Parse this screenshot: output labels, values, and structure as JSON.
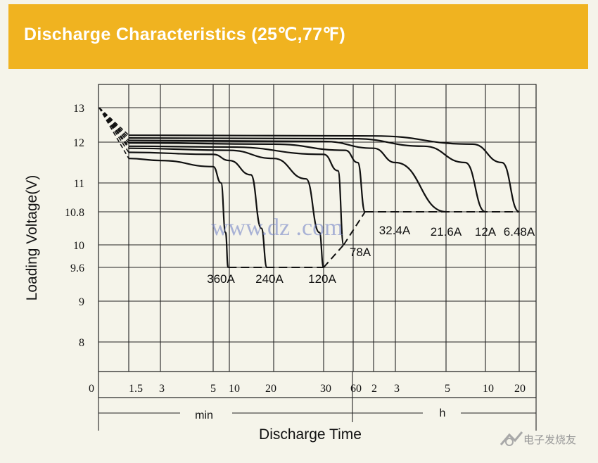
{
  "header": {
    "title": "Discharge Characteristics (25℃,77℉)"
  },
  "chart_data": {
    "type": "line",
    "title": "Discharge Characteristics (25℃,77℉)",
    "xlabel": "Discharge Time",
    "ylabel": "Loading  Voltage(V)",
    "x_units": [
      "min",
      "h"
    ],
    "x_ticks": [
      "0",
      "1.5",
      "3",
      "5",
      "10",
      "20",
      "30",
      "60",
      "2",
      "3",
      "5",
      "10",
      "20"
    ],
    "y_ticks": [
      "13",
      "12",
      "11",
      "10.8",
      "10",
      "9.6",
      "9",
      "8"
    ],
    "ylim": [
      7.5,
      13.2
    ],
    "grid": true,
    "series": [
      {
        "name": "360A",
        "cutoff_v": 9.6,
        "end_time": "9.5 min",
        "points": [
          [
            0,
            13.0
          ],
          [
            1.5,
            11.6
          ],
          [
            3,
            11.55
          ],
          [
            5,
            11.4
          ],
          [
            7,
            11.0
          ],
          [
            8.5,
            10.3
          ],
          [
            9.5,
            9.6
          ]
        ]
      },
      {
        "name": "240A",
        "cutoff_v": 9.6,
        "end_time": "18 min",
        "points": [
          [
            0,
            13.0
          ],
          [
            1.5,
            11.75
          ],
          [
            5,
            11.7
          ],
          [
            10,
            11.55
          ],
          [
            14,
            11.2
          ],
          [
            16.5,
            10.4
          ],
          [
            18,
            9.6
          ]
        ]
      },
      {
        "name": "120A",
        "cutoff_v": 9.6,
        "end_time": "30 min",
        "points": [
          [
            0,
            13.0
          ],
          [
            1.5,
            11.85
          ],
          [
            10,
            11.8
          ],
          [
            20,
            11.6
          ],
          [
            26,
            11.1
          ],
          [
            29,
            10.3
          ],
          [
            30,
            9.6
          ]
        ]
      },
      {
        "name": "78A",
        "cutoff_v": 10.0,
        "end_time": "48 min",
        "points": [
          [
            0,
            13.0
          ],
          [
            1.5,
            11.9
          ],
          [
            10,
            11.88
          ],
          [
            30,
            11.7
          ],
          [
            42,
            11.3
          ],
          [
            48,
            10.0
          ]
        ]
      },
      {
        "name": "32.4A",
        "cutoff_v": 10.8,
        "end_time": "1.5 h",
        "points": [
          [
            0,
            13.0
          ],
          [
            1.5,
            11.98
          ],
          [
            20,
            11.95
          ],
          [
            50,
            11.8
          ],
          [
            70,
            11.5
          ],
          [
            90,
            10.8
          ]
        ]
      },
      {
        "name": "21.6A",
        "cutoff_v": 10.8,
        "end_time": "5 h",
        "points": [
          [
            0,
            13.0
          ],
          [
            1.5,
            12.05
          ],
          [
            30,
            12.02
          ],
          [
            120,
            11.85
          ],
          [
            180,
            11.5
          ],
          [
            300,
            10.8
          ]
        ]
      },
      {
        "name": "12A",
        "cutoff_v": 10.8,
        "end_time": "10 h",
        "points": [
          [
            0,
            13.0
          ],
          [
            1.5,
            12.12
          ],
          [
            60,
            12.1
          ],
          [
            240,
            11.9
          ],
          [
            420,
            11.5
          ],
          [
            600,
            10.8
          ]
        ]
      },
      {
        "name": "6.48A",
        "cutoff_v": 10.8,
        "end_time": "20 h",
        "points": [
          [
            0,
            13.0
          ],
          [
            1.5,
            12.2
          ],
          [
            120,
            12.18
          ],
          [
            480,
            11.95
          ],
          [
            840,
            11.5
          ],
          [
            1200,
            10.8
          ]
        ]
      }
    ]
  },
  "watermark": "www.dz   .com",
  "logo": {
    "text": "电子发烧友",
    "icon": "logo-mark-icon"
  }
}
